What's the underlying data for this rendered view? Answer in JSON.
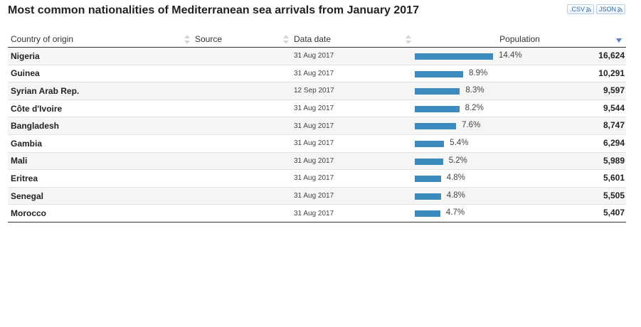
{
  "title": "Most common nationalities of Mediterranean sea arrivals from January 2017",
  "export": {
    "csv_label": ".CSV",
    "json_label": "JSON"
  },
  "columns": {
    "country": "Country of origin",
    "source": "Source",
    "date": "Data date",
    "population": "Population"
  },
  "sort": {
    "column": "population",
    "direction": "desc"
  },
  "colors": {
    "bar": "#3b8bbe",
    "sort_arrow": "#5a7fc0"
  },
  "rows": [
    {
      "country": "Nigeria",
      "source": "",
      "date": "31 Aug 2017",
      "percent": "14.4%",
      "share": 14.4,
      "population": "16,624"
    },
    {
      "country": "Guinea",
      "source": "",
      "date": "31 Aug 2017",
      "percent": "8.9%",
      "share": 8.9,
      "population": "10,291"
    },
    {
      "country": "Syrian Arab Rep.",
      "source": "",
      "date": "12 Sep 2017",
      "percent": "8.3%",
      "share": 8.3,
      "population": "9,597"
    },
    {
      "country": "Côte d'Ivoire",
      "source": "",
      "date": "31 Aug 2017",
      "percent": "8.2%",
      "share": 8.2,
      "population": "9,544"
    },
    {
      "country": "Bangladesh",
      "source": "",
      "date": "31 Aug 2017",
      "percent": "7.6%",
      "share": 7.6,
      "population": "8,747"
    },
    {
      "country": "Gambia",
      "source": "",
      "date": "31 Aug 2017",
      "percent": "5.4%",
      "share": 5.4,
      "population": "6,294"
    },
    {
      "country": "Mali",
      "source": "",
      "date": "31 Aug 2017",
      "percent": "5.2%",
      "share": 5.2,
      "population": "5,989"
    },
    {
      "country": "Eritrea",
      "source": "",
      "date": "31 Aug 2017",
      "percent": "4.8%",
      "share": 4.8,
      "population": "5,601"
    },
    {
      "country": "Senegal",
      "source": "",
      "date": "31 Aug 2017",
      "percent": "4.8%",
      "share": 4.8,
      "population": "5,505"
    },
    {
      "country": "Morocco",
      "source": "",
      "date": "31 Aug 2017",
      "percent": "4.7%",
      "share": 4.7,
      "population": "5,407"
    }
  ]
}
